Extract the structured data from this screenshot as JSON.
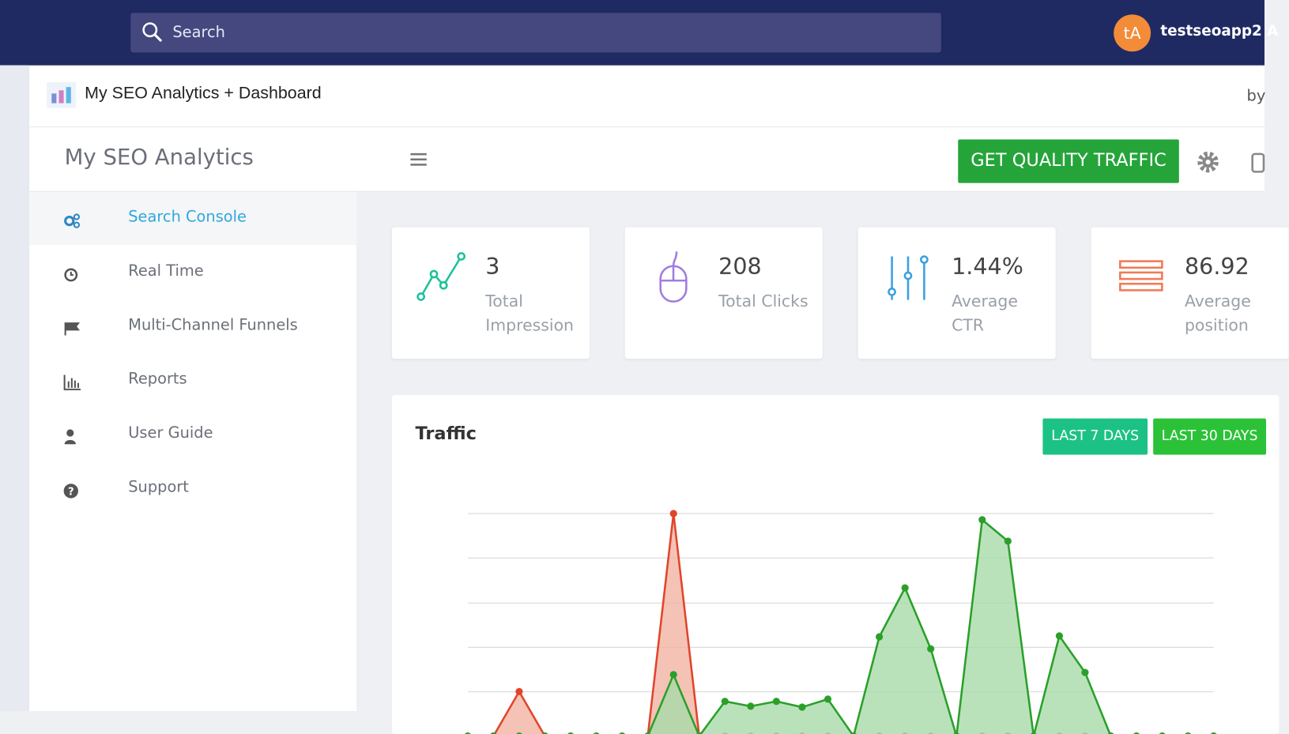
{
  "topbar": {
    "search_placeholder": "Search",
    "avatar": "tA",
    "username": "testseoapp2 A"
  },
  "subheader": {
    "title": "My SEO Analytics + Dashboard",
    "by": "by"
  },
  "brand": {
    "name": "My SEO Analytics",
    "cta": "GET QUALITY TRAFFIC"
  },
  "sidebar": [
    "Search Console",
    "Real Time",
    "Multi-Channel Funnels",
    "Reports",
    "User Guide",
    "Support"
  ],
  "stats": [
    {
      "value": "3",
      "label": "Total Impression"
    },
    {
      "value": "208",
      "label": "Total Clicks"
    },
    {
      "value": "1.44%",
      "label": "Average CTR"
    },
    {
      "value": "86.92",
      "label": "Average position"
    }
  ],
  "chart_data": {
    "type": "area",
    "title": "Traffic",
    "buttons": [
      "LAST 7 DAYS",
      "LAST 30 DAYS"
    ],
    "ylim": [
      0,
      5
    ],
    "series": [
      {
        "color": "#e0452b",
        "fill": "#f2b3a4",
        "values": [
          0,
          0,
          1.0,
          0,
          0,
          0,
          0,
          0,
          5.0,
          0,
          0,
          0,
          0,
          0,
          0,
          0,
          0,
          0,
          0,
          0,
          0,
          0,
          0,
          0,
          0,
          0,
          0,
          0,
          0,
          0
        ]
      },
      {
        "color": "#2aa02a",
        "fill": "#a9dba9",
        "values": [
          0,
          0,
          0,
          0,
          0,
          0,
          0,
          0,
          1.38,
          0,
          0.78,
          0.67,
          0.78,
          0.65,
          0.83,
          0,
          2.23,
          3.33,
          1.96,
          0,
          4.86,
          4.38,
          0,
          2.25,
          1.43,
          0,
          0,
          0,
          0,
          0
        ]
      }
    ]
  }
}
